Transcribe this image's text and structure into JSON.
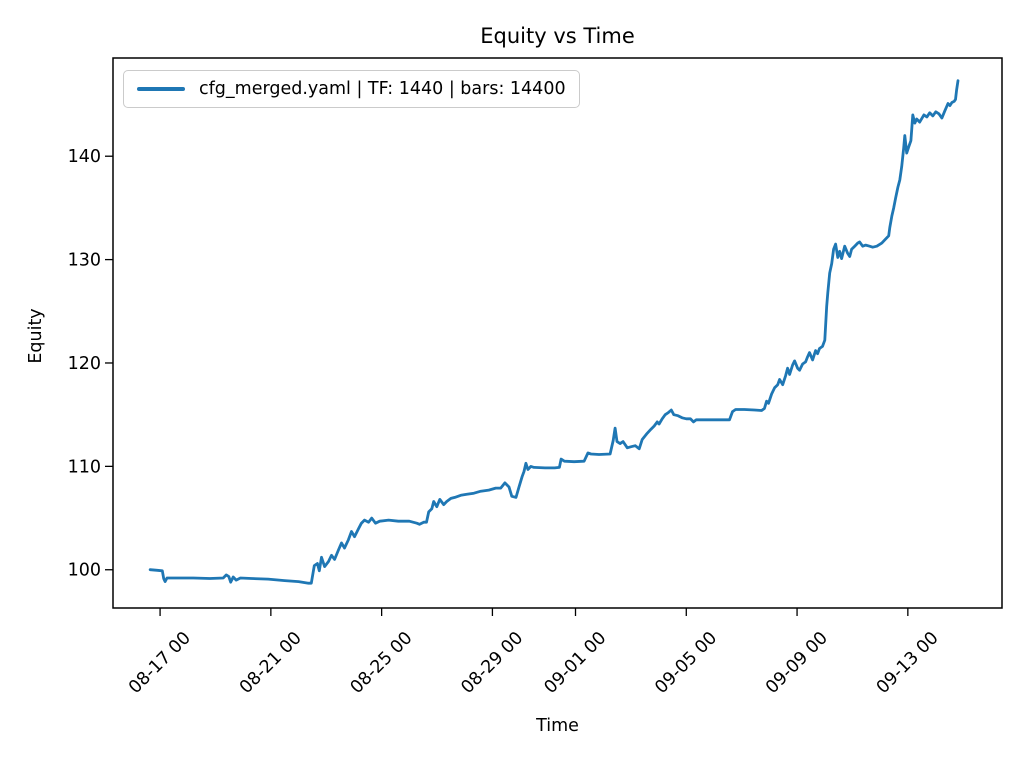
{
  "figure": {
    "background": "#ffffff"
  },
  "chart_data": {
    "type": "line",
    "title": "Equity vs Time",
    "xlabel": "Time",
    "ylabel": "Equity",
    "grid": false,
    "legend": {
      "position": "upper-left",
      "entries": [
        {
          "label": "cfg_merged.yaml | TF: 1440 | bars: 14400",
          "color": "#1f77b4"
        }
      ]
    },
    "x_unit": "days (0 = 08-15 00:00), tick labels formatted MM-DD HH",
    "xlim": [
      0.3,
      32.4
    ],
    "ylim": [
      96.3,
      149.5
    ],
    "xticks": [
      {
        "value": 2,
        "label": "08-17 00"
      },
      {
        "value": 6,
        "label": "08-21 00"
      },
      {
        "value": 10,
        "label": "08-25 00"
      },
      {
        "value": 14,
        "label": "08-29 00"
      },
      {
        "value": 17,
        "label": "09-01 00"
      },
      {
        "value": 21,
        "label": "09-05 00"
      },
      {
        "value": 25,
        "label": "09-09 00"
      },
      {
        "value": 29,
        "label": "09-13 00"
      }
    ],
    "yticks": [
      {
        "value": 100,
        "label": "100"
      },
      {
        "value": 110,
        "label": "110"
      },
      {
        "value": 120,
        "label": "120"
      },
      {
        "value": 130,
        "label": "130"
      },
      {
        "value": 140,
        "label": "140"
      }
    ],
    "series": [
      {
        "name": "cfg_merged.yaml | TF: 1440 | bars: 14400",
        "color": "#1f77b4",
        "line_width": 2.8,
        "points": [
          [
            1.64,
            100.0
          ],
          [
            1.9,
            99.95
          ],
          [
            2.08,
            99.9
          ],
          [
            2.13,
            99.15
          ],
          [
            2.18,
            98.85
          ],
          [
            2.25,
            99.2
          ],
          [
            2.6,
            99.2
          ],
          [
            3.2,
            99.2
          ],
          [
            3.8,
            99.15
          ],
          [
            4.28,
            99.2
          ],
          [
            4.39,
            99.5
          ],
          [
            4.48,
            99.35
          ],
          [
            4.55,
            98.8
          ],
          [
            4.64,
            99.3
          ],
          [
            4.75,
            99.0
          ],
          [
            4.9,
            99.2
          ],
          [
            5.3,
            99.15
          ],
          [
            5.9,
            99.1
          ],
          [
            6.5,
            98.95
          ],
          [
            7.0,
            98.85
          ],
          [
            7.36,
            98.7
          ],
          [
            7.46,
            98.7
          ],
          [
            7.57,
            100.4
          ],
          [
            7.68,
            100.6
          ],
          [
            7.75,
            99.9
          ],
          [
            7.83,
            101.2
          ],
          [
            7.94,
            100.3
          ],
          [
            8.08,
            100.8
          ],
          [
            8.19,
            101.4
          ],
          [
            8.3,
            101.0
          ],
          [
            8.44,
            101.9
          ],
          [
            8.55,
            102.6
          ],
          [
            8.66,
            102.1
          ],
          [
            8.8,
            102.9
          ],
          [
            8.91,
            103.7
          ],
          [
            9.02,
            103.2
          ],
          [
            9.17,
            104.0
          ],
          [
            9.27,
            104.5
          ],
          [
            9.38,
            104.8
          ],
          [
            9.53,
            104.6
          ],
          [
            9.64,
            105.0
          ],
          [
            9.78,
            104.5
          ],
          [
            9.93,
            104.7
          ],
          [
            10.25,
            104.8
          ],
          [
            10.6,
            104.7
          ],
          [
            11.0,
            104.7
          ],
          [
            11.27,
            104.5
          ],
          [
            11.37,
            104.4
          ],
          [
            11.52,
            104.6
          ],
          [
            11.62,
            104.6
          ],
          [
            11.7,
            105.6
          ],
          [
            11.81,
            105.9
          ],
          [
            11.88,
            106.6
          ],
          [
            11.99,
            106.1
          ],
          [
            12.1,
            106.8
          ],
          [
            12.24,
            106.3
          ],
          [
            12.35,
            106.6
          ],
          [
            12.5,
            106.9
          ],
          [
            12.64,
            107.0
          ],
          [
            12.86,
            107.2
          ],
          [
            13.08,
            107.3
          ],
          [
            13.33,
            107.4
          ],
          [
            13.58,
            107.6
          ],
          [
            13.87,
            107.7
          ],
          [
            14.12,
            107.9
          ],
          [
            14.3,
            107.9
          ],
          [
            14.45,
            108.4
          ],
          [
            14.6,
            108.0
          ],
          [
            14.7,
            107.1
          ],
          [
            14.85,
            107.0
          ],
          [
            14.96,
            108.0
          ],
          [
            15.07,
            109.0
          ],
          [
            15.14,
            109.5
          ],
          [
            15.21,
            110.3
          ],
          [
            15.28,
            109.7
          ],
          [
            15.39,
            110.0
          ],
          [
            15.5,
            109.9
          ],
          [
            15.9,
            109.85
          ],
          [
            16.25,
            109.85
          ],
          [
            16.42,
            109.9
          ],
          [
            16.48,
            110.7
          ],
          [
            16.6,
            110.5
          ],
          [
            16.95,
            110.45
          ],
          [
            17.31,
            110.5
          ],
          [
            17.45,
            111.3
          ],
          [
            17.56,
            111.2
          ],
          [
            17.85,
            111.15
          ],
          [
            18.25,
            111.2
          ],
          [
            18.36,
            112.5
          ],
          [
            18.43,
            113.7
          ],
          [
            18.5,
            112.4
          ],
          [
            18.61,
            112.2
          ],
          [
            18.72,
            112.4
          ],
          [
            18.87,
            111.8
          ],
          [
            19.01,
            111.9
          ],
          [
            19.16,
            112.0
          ],
          [
            19.3,
            111.7
          ],
          [
            19.41,
            112.6
          ],
          [
            19.59,
            113.2
          ],
          [
            19.73,
            113.6
          ],
          [
            19.84,
            113.9
          ],
          [
            19.95,
            114.3
          ],
          [
            20.02,
            114.1
          ],
          [
            20.13,
            114.6
          ],
          [
            20.24,
            115.0
          ],
          [
            20.35,
            115.2
          ],
          [
            20.46,
            115.45
          ],
          [
            20.55,
            115.0
          ],
          [
            20.7,
            114.9
          ],
          [
            20.85,
            114.7
          ],
          [
            21.0,
            114.6
          ],
          [
            21.15,
            114.6
          ],
          [
            21.26,
            114.3
          ],
          [
            21.36,
            114.5
          ],
          [
            21.7,
            114.5
          ],
          [
            22.05,
            114.5
          ],
          [
            22.4,
            114.5
          ],
          [
            22.56,
            114.5
          ],
          [
            22.67,
            115.3
          ],
          [
            22.78,
            115.5
          ],
          [
            23.1,
            115.5
          ],
          [
            23.46,
            115.45
          ],
          [
            23.72,
            115.4
          ],
          [
            23.82,
            115.6
          ],
          [
            23.9,
            116.3
          ],
          [
            23.97,
            116.1
          ],
          [
            24.08,
            117.0
          ],
          [
            24.19,
            117.6
          ],
          [
            24.3,
            117.9
          ],
          [
            24.37,
            118.4
          ],
          [
            24.48,
            117.9
          ],
          [
            24.59,
            118.8
          ],
          [
            24.66,
            119.5
          ],
          [
            24.73,
            118.9
          ],
          [
            24.84,
            119.8
          ],
          [
            24.91,
            120.2
          ],
          [
            25.02,
            119.5
          ],
          [
            25.09,
            119.3
          ],
          [
            25.2,
            119.9
          ],
          [
            25.31,
            120.1
          ],
          [
            25.38,
            120.6
          ],
          [
            25.45,
            121.0
          ],
          [
            25.56,
            120.3
          ],
          [
            25.67,
            121.2
          ],
          [
            25.74,
            120.9
          ],
          [
            25.81,
            121.4
          ],
          [
            25.92,
            121.6
          ],
          [
            26.0,
            122.2
          ],
          [
            26.07,
            125.5
          ],
          [
            26.11,
            126.8
          ],
          [
            26.18,
            128.7
          ],
          [
            26.25,
            129.6
          ],
          [
            26.32,
            131.0
          ],
          [
            26.39,
            131.5
          ],
          [
            26.47,
            130.2
          ],
          [
            26.54,
            130.8
          ],
          [
            26.61,
            130.1
          ],
          [
            26.72,
            131.3
          ],
          [
            26.83,
            130.6
          ],
          [
            26.9,
            130.3
          ],
          [
            26.97,
            131.0
          ],
          [
            27.08,
            131.3
          ],
          [
            27.19,
            131.6
          ],
          [
            27.26,
            131.7
          ],
          [
            27.37,
            131.3
          ],
          [
            27.48,
            131.4
          ],
          [
            27.62,
            131.3
          ],
          [
            27.73,
            131.2
          ],
          [
            27.88,
            131.3
          ],
          [
            28.06,
            131.6
          ],
          [
            28.2,
            132.0
          ],
          [
            28.31,
            132.3
          ],
          [
            28.35,
            133.1
          ],
          [
            28.42,
            134.2
          ],
          [
            28.49,
            135.0
          ],
          [
            28.56,
            136.0
          ],
          [
            28.64,
            137.0
          ],
          [
            28.71,
            137.7
          ],
          [
            28.78,
            139.0
          ],
          [
            28.85,
            140.8
          ],
          [
            28.89,
            142.0
          ],
          [
            28.96,
            140.3
          ],
          [
            29.03,
            140.9
          ],
          [
            29.11,
            141.5
          ],
          [
            29.18,
            144.0
          ],
          [
            29.25,
            143.2
          ],
          [
            29.32,
            143.6
          ],
          [
            29.43,
            143.3
          ],
          [
            29.58,
            144.0
          ],
          [
            29.69,
            143.8
          ],
          [
            29.79,
            144.2
          ],
          [
            29.9,
            143.9
          ],
          [
            30.01,
            144.3
          ],
          [
            30.12,
            144.1
          ],
          [
            30.23,
            143.7
          ],
          [
            30.34,
            144.4
          ],
          [
            30.45,
            145.1
          ],
          [
            30.52,
            144.9
          ],
          [
            30.59,
            145.2
          ],
          [
            30.67,
            145.3
          ],
          [
            30.72,
            145.5
          ],
          [
            30.76,
            146.4
          ],
          [
            30.81,
            147.3
          ]
        ]
      }
    ]
  },
  "style": {
    "line_color": "#1f77b4",
    "spine_color": "#000000",
    "tick_color": "#000000",
    "text_color": "#000000",
    "legend_border_color": "#cbcbcb",
    "background_color": "#ffffff"
  }
}
